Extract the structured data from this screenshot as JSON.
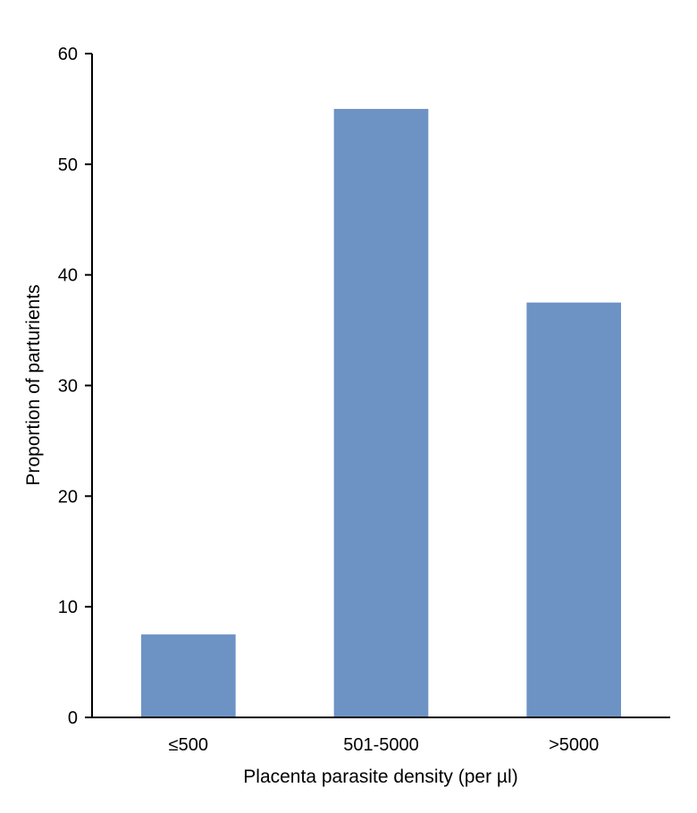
{
  "chart_data": {
    "type": "bar",
    "title": "",
    "xlabel": "Placenta parasite density (per µl)",
    "ylabel": "Proportion of parturients",
    "categories": [
      "≤500",
      "501-5000",
      ">5000"
    ],
    "values": [
      7.5,
      55,
      37.5
    ],
    "ylim": [
      0,
      60
    ],
    "yticks": [
      0,
      10,
      20,
      30,
      40,
      50,
      60
    ],
    "grid": false,
    "legend": "none",
    "bar_color": "#6d93c5"
  }
}
